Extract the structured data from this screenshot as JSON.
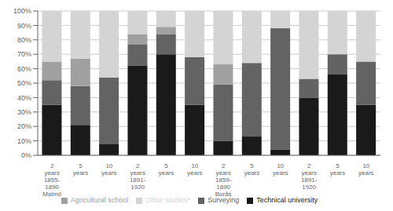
{
  "chart_data": {
    "type": "bar",
    "stacked": true,
    "grid": true,
    "legend": "bottom",
    "categories": [
      "2\nyears\n1855-\n1890\nMalmö",
      "5\nyears",
      "10\nyears",
      "2\nyears\n1891-\n1920",
      "5\nyears",
      "10\nyears",
      "2\nyears\n1859-\n1890\nBorås",
      "5\nyears",
      "10\nyears",
      "2\nyears\n1891-\n1920",
      "5\nyears",
      "10\nyears"
    ],
    "series": [
      {
        "name": "Technical university",
        "color": "#1a1a1a",
        "values": [
          35,
          21,
          8,
          62,
          70,
          35,
          10,
          13,
          4,
          40,
          56,
          35
        ]
      },
      {
        "name": "Surveying",
        "color": "#636363",
        "values": [
          17,
          27,
          46,
          15,
          14,
          33,
          39,
          51,
          84,
          13,
          14,
          30
        ]
      },
      {
        "name": "Agricultural school",
        "color": "#a0a0a0",
        "values": [
          13,
          19,
          0,
          7,
          5,
          0,
          14,
          0,
          0,
          0,
          0,
          0
        ]
      },
      {
        "name": "Other studies*",
        "color": "#d4d4d4",
        "values": [
          35,
          33,
          46,
          16,
          11,
          32,
          37,
          36,
          12,
          47,
          30,
          35
        ]
      }
    ],
    "ylim": [
      0,
      100
    ],
    "yticks": [
      {
        "value": 0,
        "label": "0%"
      },
      {
        "value": 10,
        "label": "10%"
      },
      {
        "value": 20,
        "label": "20%"
      },
      {
        "value": 30,
        "label": "30%"
      },
      {
        "value": 40,
        "label": "40%"
      },
      {
        "value": 50,
        "label": "50%"
      },
      {
        "value": 60,
        "label": "60%"
      },
      {
        "value": 70,
        "label": "70%"
      },
      {
        "value": 80,
        "label": "80%"
      },
      {
        "value": 90,
        "label": "90%"
      },
      {
        "value": 100,
        "label": "100%"
      }
    ]
  }
}
